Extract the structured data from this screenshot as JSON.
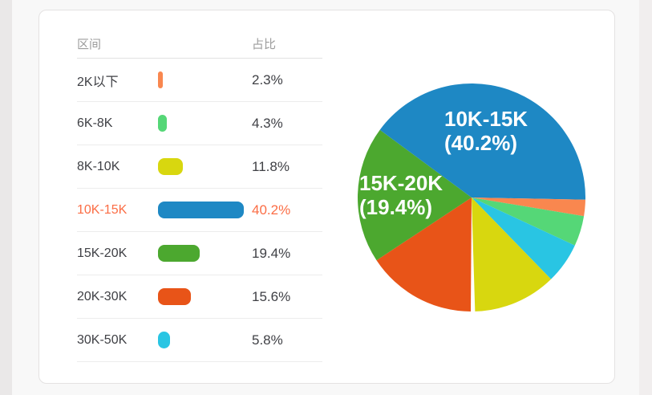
{
  "page": {
    "background_outer_left": "#eae8e8",
    "background_inner": "#f8f8f8",
    "background_outer_right": "#f1eeee",
    "card_background": "#ffffff",
    "highlight_color": "#fb6d45"
  },
  "table": {
    "headers": {
      "range": "区间",
      "share": "占比"
    },
    "rows": [
      {
        "range": "2K以下",
        "share": "2.3%",
        "highlighted": false
      },
      {
        "range": "6K-8K",
        "share": "4.3%",
        "highlighted": false
      },
      {
        "range": "8K-10K",
        "share": "11.8%",
        "highlighted": false
      },
      {
        "range": "10K-15K",
        "share": "40.2%",
        "highlighted": true
      },
      {
        "range": "15K-20K",
        "share": "19.4%",
        "highlighted": false
      },
      {
        "range": "20K-30K",
        "share": "15.6%",
        "highlighted": false
      },
      {
        "range": "30K-50K",
        "share": "5.8%",
        "highlighted": false
      }
    ]
  },
  "chart_data": {
    "type": "pie",
    "title": "",
    "categories": [
      "2K以下",
      "6K-8K",
      "8K-10K",
      "10K-15K",
      "15K-20K",
      "20K-30K",
      "30K-50K"
    ],
    "values": [
      2.3,
      4.3,
      11.8,
      40.2,
      19.4,
      15.6,
      5.8
    ],
    "series_colors": [
      "#f9874f",
      "#55d777",
      "#d8d70f",
      "#1e88c4",
      "#4ca82f",
      "#e85418",
      "#29c5e3"
    ],
    "legend_position": "left-table",
    "pie": {
      "start_angle_deg": 180.4,
      "draw_order": [
        "20K-30K",
        "15K-20K",
        "10K-15K",
        "2K以下",
        "6K-8K",
        "30K-50K",
        "8K-10K"
      ],
      "labels": [
        {
          "slice": "10K-15K",
          "line1": "10K-15K",
          "line2": "(40.2%)"
        },
        {
          "slice": "15K-20K",
          "line1": "15K-20K",
          "line2": "(19.4%)"
        }
      ]
    }
  }
}
